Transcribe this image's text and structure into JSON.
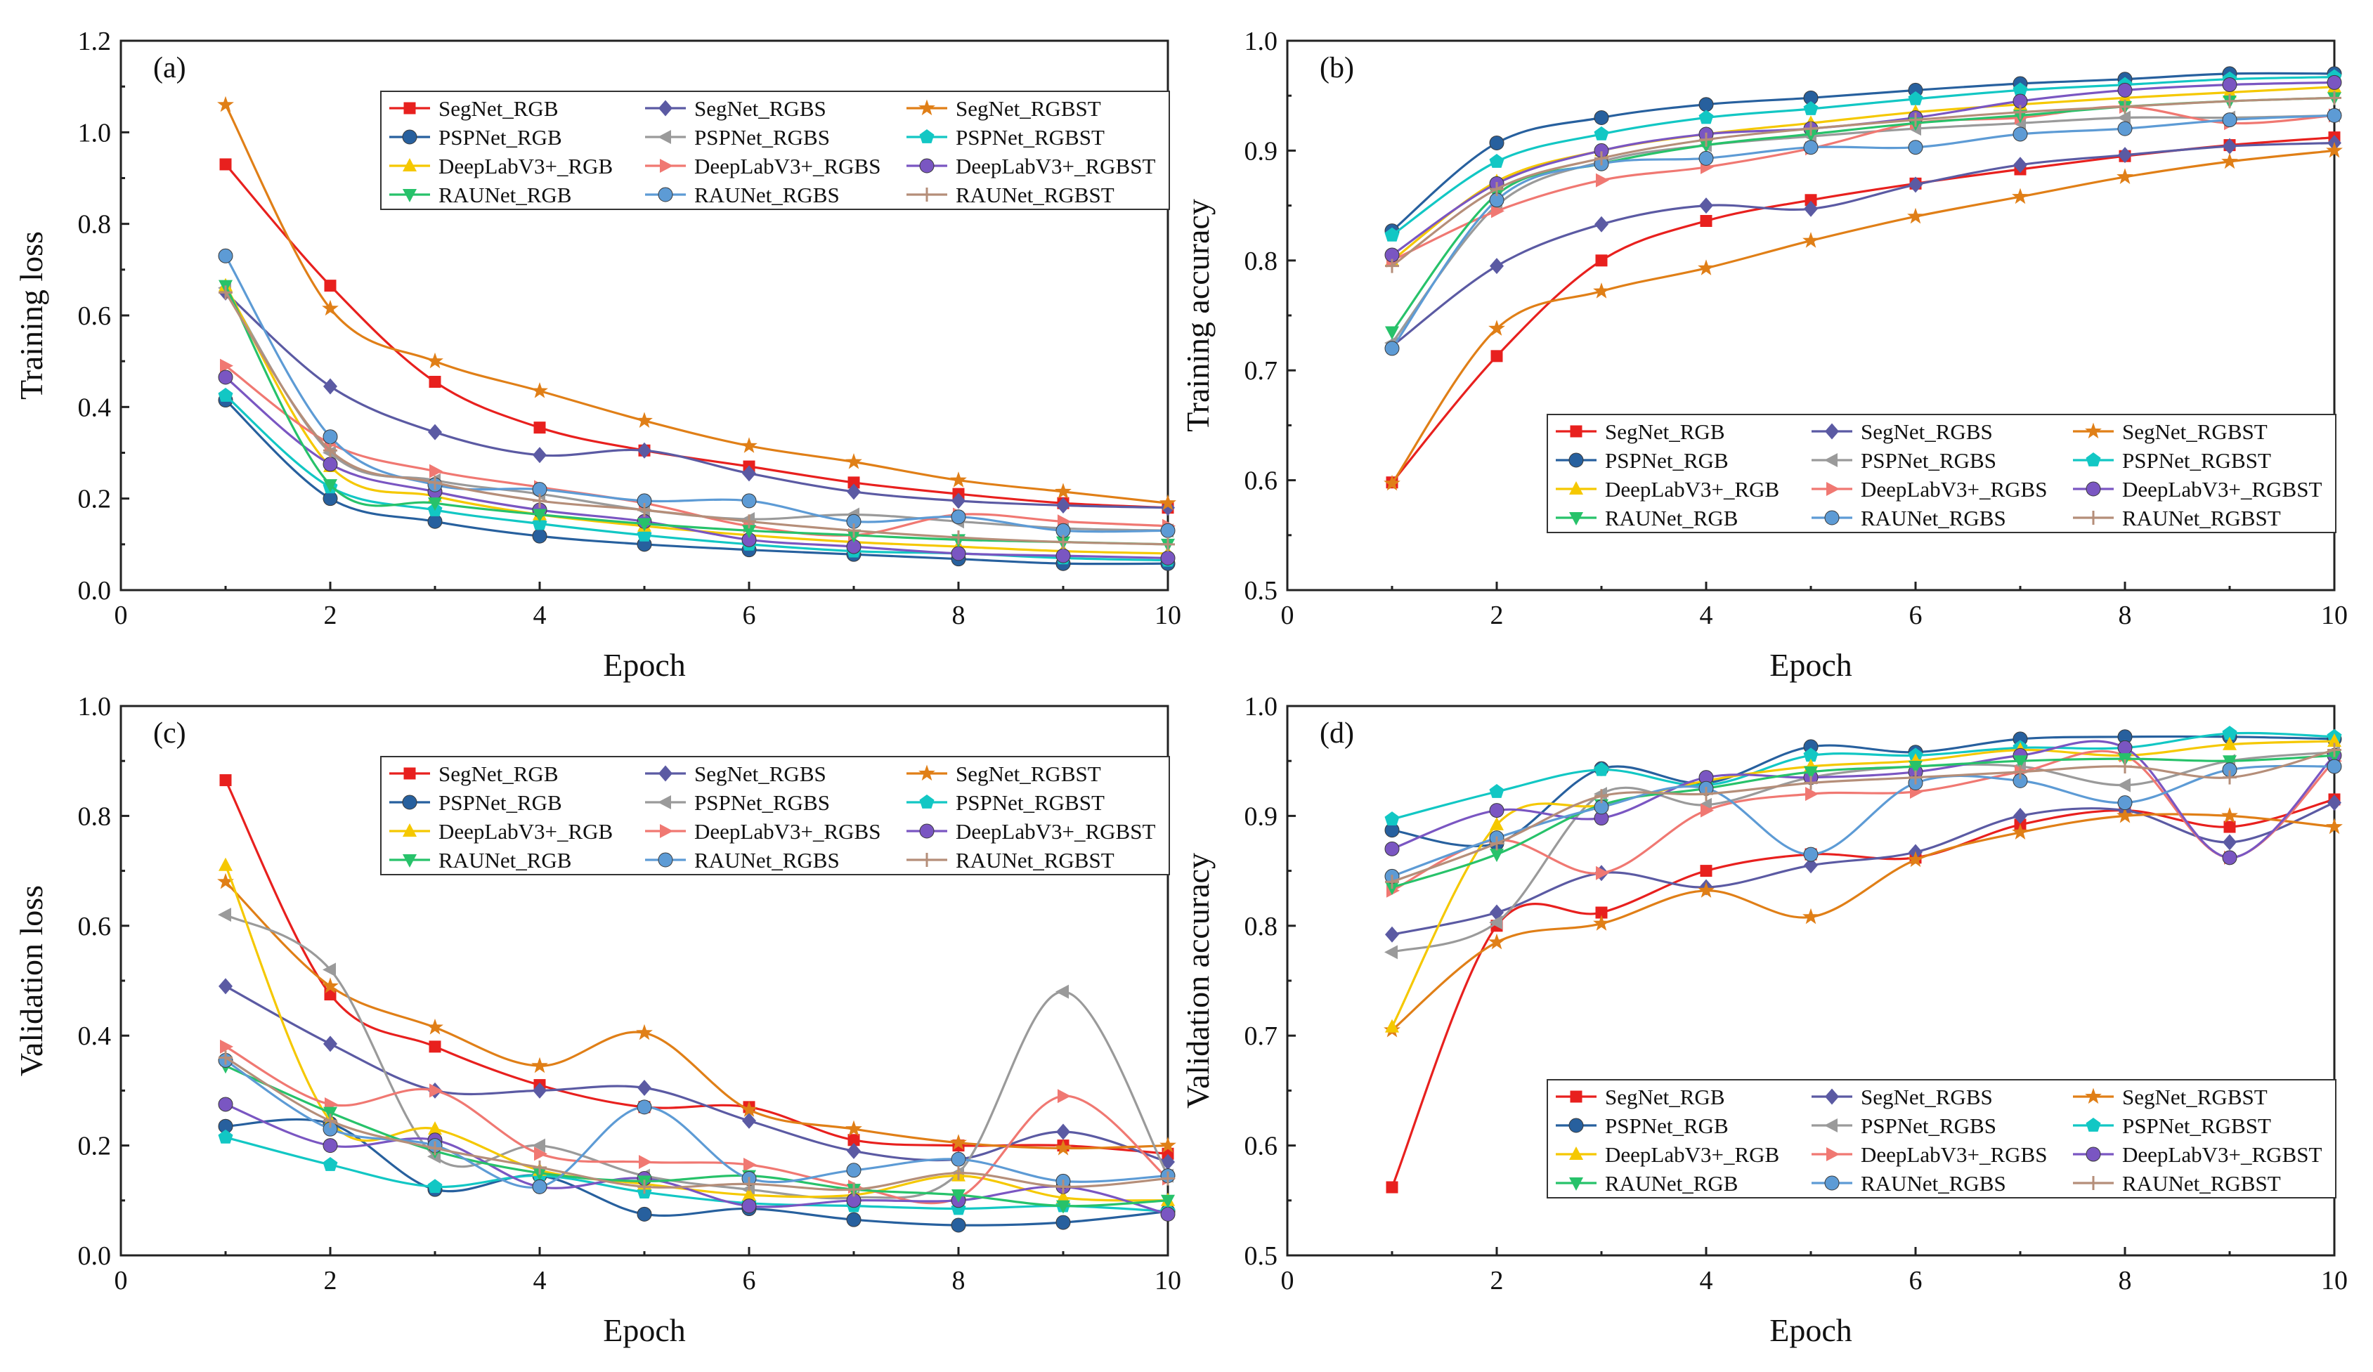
{
  "style": {
    "series_colors": {
      "SegNet_RGB": "#E8201E",
      "SegNet_RGBS": "#5B5AA3",
      "SegNet_RGBST": "#E07F17",
      "PSPNet_RGB": "#27609E",
      "PSPNet_RGBS": "#9A9A9A",
      "PSPNet_RGBST": "#12C7C4",
      "DeepLabV3+_RGB": "#F5C800",
      "DeepLabV3+_RGBS": "#F07872",
      "DeepLabV3+_RGBST": "#7A56C2",
      "RAUNet_RGB": "#27C26A",
      "RAUNet_RGBS": "#5D9BD5",
      "RAUNet_RGBST": "#B58E79"
    },
    "series_markers": {
      "SegNet_RGB": "square",
      "SegNet_RGBS": "diamond",
      "SegNet_RGBST": "star",
      "PSPNet_RGB": "circle",
      "PSPNet_RGBS": "triangle-left",
      "PSPNet_RGBST": "pentagon",
      "DeepLabV3+_RGB": "triangle-up",
      "DeepLabV3+_RGBS": "triangle-right",
      "DeepLabV3+_RGBST": "circle",
      "RAUNet_RGB": "triangle-down",
      "RAUNet_RGBS": "circle",
      "RAUNet_RGBST": "plus"
    }
  },
  "chart_data": [
    {
      "id": "a",
      "panel_label": "(a)",
      "type": "line",
      "xlabel": "Epoch",
      "ylabel": "Training loss",
      "xlim": [
        0,
        10
      ],
      "ylim": [
        0,
        1.2
      ],
      "xticks": [
        "0",
        "2",
        "4",
        "6",
        "8",
        "10"
      ],
      "yticks": [
        "0.0",
        "0.2",
        "0.4",
        "0.6",
        "0.8",
        "1.0",
        "1.2"
      ],
      "legend_placement": "top-right",
      "x": [
        1,
        2,
        3,
        4,
        5,
        6,
        7,
        8,
        9,
        10
      ],
      "series": [
        {
          "name": "SegNet_RGB",
          "values": [
            0.93,
            0.665,
            0.455,
            0.355,
            0.305,
            0.27,
            0.235,
            0.21,
            0.19,
            0.18
          ]
        },
        {
          "name": "SegNet_RGBS",
          "values": [
            0.65,
            0.445,
            0.345,
            0.295,
            0.305,
            0.255,
            0.215,
            0.195,
            0.185,
            0.18
          ]
        },
        {
          "name": "SegNet_RGBST",
          "values": [
            1.06,
            0.615,
            0.5,
            0.435,
            0.37,
            0.315,
            0.28,
            0.24,
            0.215,
            0.19
          ]
        },
        {
          "name": "PSPNet_RGB",
          "values": [
            0.415,
            0.2,
            0.15,
            0.118,
            0.1,
            0.088,
            0.078,
            0.068,
            0.058,
            0.058
          ]
        },
        {
          "name": "PSPNet_RGBS",
          "values": [
            0.66,
            0.3,
            0.24,
            0.21,
            0.175,
            0.155,
            0.165,
            0.15,
            0.135,
            0.13
          ]
        },
        {
          "name": "PSPNet_RGBST",
          "values": [
            0.425,
            0.225,
            0.175,
            0.145,
            0.12,
            0.1,
            0.085,
            0.08,
            0.07,
            0.065
          ]
        },
        {
          "name": "DeepLabV3+_RGB",
          "values": [
            0.665,
            0.27,
            0.205,
            0.165,
            0.14,
            0.12,
            0.105,
            0.095,
            0.085,
            0.08
          ]
        },
        {
          "name": "DeepLabV3+_RGBS",
          "values": [
            0.49,
            0.32,
            0.26,
            0.225,
            0.19,
            0.14,
            0.12,
            0.165,
            0.15,
            0.14
          ]
        },
        {
          "name": "DeepLabV3+_RGBST",
          "values": [
            0.465,
            0.275,
            0.215,
            0.175,
            0.15,
            0.11,
            0.095,
            0.08,
            0.075,
            0.07
          ]
        },
        {
          "name": "RAUNet_RGB",
          "values": [
            0.665,
            0.23,
            0.19,
            0.165,
            0.145,
            0.13,
            0.12,
            0.11,
            0.105,
            0.1
          ]
        },
        {
          "name": "RAUNet_RGBS",
          "values": [
            0.73,
            0.335,
            0.23,
            0.22,
            0.195,
            0.195,
            0.15,
            0.16,
            0.13,
            0.13
          ]
        },
        {
          "name": "RAUNet_RGBST",
          "values": [
            0.65,
            0.305,
            0.235,
            0.195,
            0.175,
            0.15,
            0.13,
            0.115,
            0.105,
            0.1
          ]
        }
      ]
    },
    {
      "id": "b",
      "panel_label": "(b)",
      "type": "line",
      "xlabel": "Epoch",
      "ylabel": "Training accuracy",
      "xlim": [
        0,
        10
      ],
      "ylim": [
        0.5,
        1.0
      ],
      "xticks": [
        "0",
        "2",
        "4",
        "6",
        "8",
        "10"
      ],
      "yticks": [
        "0.5",
        "0.6",
        "0.7",
        "0.8",
        "0.9",
        "1.0"
      ],
      "legend_placement": "bottom-right",
      "x": [
        1,
        2,
        3,
        4,
        5,
        6,
        7,
        8,
        9,
        10
      ],
      "series": [
        {
          "name": "SegNet_RGB",
          "values": [
            0.598,
            0.713,
            0.8,
            0.836,
            0.855,
            0.87,
            0.883,
            0.895,
            0.905,
            0.912
          ]
        },
        {
          "name": "SegNet_RGBS",
          "values": [
            0.722,
            0.795,
            0.833,
            0.85,
            0.847,
            0.869,
            0.887,
            0.896,
            0.904,
            0.907
          ]
        },
        {
          "name": "SegNet_RGBST",
          "values": [
            0.597,
            0.738,
            0.772,
            0.793,
            0.818,
            0.84,
            0.858,
            0.876,
            0.89,
            0.9
          ]
        },
        {
          "name": "PSPNet_RGB",
          "values": [
            0.827,
            0.907,
            0.93,
            0.942,
            0.948,
            0.955,
            0.961,
            0.965,
            0.97,
            0.97
          ]
        },
        {
          "name": "PSPNet_RGBS",
          "values": [
            0.725,
            0.85,
            0.89,
            0.905,
            0.913,
            0.92,
            0.925,
            0.93,
            0.93,
            0.932
          ]
        },
        {
          "name": "PSPNet_RGBST",
          "values": [
            0.823,
            0.89,
            0.915,
            0.93,
            0.938,
            0.947,
            0.955,
            0.96,
            0.965,
            0.967
          ]
        },
        {
          "name": "DeepLabV3+_RGB",
          "values": [
            0.8,
            0.872,
            0.9,
            0.915,
            0.925,
            0.935,
            0.942,
            0.948,
            0.953,
            0.958
          ]
        },
        {
          "name": "DeepLabV3+_RGBS",
          "values": [
            0.8,
            0.845,
            0.873,
            0.885,
            0.902,
            0.925,
            0.93,
            0.94,
            0.925,
            0.932
          ]
        },
        {
          "name": "DeepLabV3+_RGBST",
          "values": [
            0.805,
            0.87,
            0.9,
            0.915,
            0.92,
            0.93,
            0.945,
            0.955,
            0.96,
            0.962
          ]
        },
        {
          "name": "RAUNet_RGB",
          "values": [
            0.735,
            0.86,
            0.888,
            0.905,
            0.915,
            0.925,
            0.932,
            0.94,
            0.945,
            0.948
          ]
        },
        {
          "name": "RAUNet_RGBS",
          "values": [
            0.72,
            0.855,
            0.888,
            0.893,
            0.903,
            0.903,
            0.915,
            0.92,
            0.928,
            0.932
          ]
        },
        {
          "name": "RAUNet_RGBST",
          "values": [
            0.795,
            0.865,
            0.893,
            0.91,
            0.92,
            0.928,
            0.935,
            0.94,
            0.945,
            0.948
          ]
        }
      ]
    },
    {
      "id": "c",
      "panel_label": "(c)",
      "type": "line",
      "xlabel": "Epoch",
      "ylabel": "Validation loss",
      "xlim": [
        0,
        10
      ],
      "ylim": [
        0,
        1.0
      ],
      "xticks": [
        "0",
        "2",
        "4",
        "6",
        "8",
        "10"
      ],
      "yticks": [
        "0.0",
        "0.2",
        "0.4",
        "0.6",
        "0.8",
        "1.0"
      ],
      "legend_placement": "top-right",
      "x": [
        1,
        2,
        3,
        4,
        5,
        6,
        7,
        8,
        9,
        10
      ],
      "series": [
        {
          "name": "SegNet_RGB",
          "values": [
            0.865,
            0.475,
            0.38,
            0.31,
            0.27,
            0.27,
            0.21,
            0.2,
            0.2,
            0.185
          ]
        },
        {
          "name": "SegNet_RGBS",
          "values": [
            0.49,
            0.385,
            0.3,
            0.3,
            0.305,
            0.245,
            0.19,
            0.175,
            0.225,
            0.17
          ]
        },
        {
          "name": "SegNet_RGBST",
          "values": [
            0.68,
            0.49,
            0.415,
            0.345,
            0.405,
            0.265,
            0.23,
            0.205,
            0.195,
            0.2
          ]
        },
        {
          "name": "PSPNet_RGB",
          "values": [
            0.235,
            0.24,
            0.12,
            0.145,
            0.075,
            0.085,
            0.065,
            0.055,
            0.06,
            0.08
          ]
        },
        {
          "name": "PSPNet_RGBS",
          "values": [
            0.62,
            0.52,
            0.18,
            0.2,
            0.145,
            0.12,
            0.105,
            0.15,
            0.48,
            0.145
          ]
        },
        {
          "name": "PSPNet_RGBST",
          "values": [
            0.215,
            0.165,
            0.125,
            0.145,
            0.115,
            0.095,
            0.09,
            0.085,
            0.09,
            0.08
          ]
        },
        {
          "name": "DeepLabV3+_RGB",
          "values": [
            0.71,
            0.245,
            0.23,
            0.155,
            0.13,
            0.11,
            0.11,
            0.145,
            0.105,
            0.1
          ]
        },
        {
          "name": "DeepLabV3+_RGBS",
          "values": [
            0.38,
            0.275,
            0.3,
            0.185,
            0.17,
            0.165,
            0.125,
            0.105,
            0.29,
            0.14
          ]
        },
        {
          "name": "DeepLabV3+_RGBST",
          "values": [
            0.275,
            0.2,
            0.21,
            0.125,
            0.14,
            0.09,
            0.1,
            0.1,
            0.125,
            0.075
          ]
        },
        {
          "name": "RAUNet_RGB",
          "values": [
            0.345,
            0.26,
            0.19,
            0.15,
            0.135,
            0.145,
            0.12,
            0.11,
            0.09,
            0.1
          ]
        },
        {
          "name": "RAUNet_RGBS",
          "values": [
            0.355,
            0.23,
            0.2,
            0.125,
            0.27,
            0.14,
            0.155,
            0.175,
            0.135,
            0.145
          ]
        },
        {
          "name": "RAUNet_RGBST",
          "values": [
            0.36,
            0.245,
            0.195,
            0.16,
            0.125,
            0.13,
            0.12,
            0.15,
            0.125,
            0.14
          ]
        }
      ]
    },
    {
      "id": "d",
      "panel_label": "(d)",
      "type": "line",
      "xlabel": "Epoch",
      "ylabel": "Validation accuracy",
      "xlim": [
        0,
        10
      ],
      "ylim": [
        0.5,
        1.0
      ],
      "xticks": [
        "0",
        "2",
        "4",
        "6",
        "8",
        "10"
      ],
      "yticks": [
        "0.5",
        "0.6",
        "0.7",
        "0.8",
        "0.9",
        "1.0"
      ],
      "legend_placement": "bottom-right",
      "x": [
        1,
        2,
        3,
        4,
        5,
        6,
        7,
        8,
        9,
        10
      ],
      "series": [
        {
          "name": "SegNet_RGB",
          "values": [
            0.562,
            0.8,
            0.812,
            0.85,
            0.865,
            0.862,
            0.892,
            0.905,
            0.89,
            0.915
          ]
        },
        {
          "name": "SegNet_RGBS",
          "values": [
            0.792,
            0.812,
            0.848,
            0.835,
            0.855,
            0.867,
            0.9,
            0.905,
            0.876,
            0.912
          ]
        },
        {
          "name": "SegNet_RGBST",
          "values": [
            0.705,
            0.785,
            0.802,
            0.832,
            0.808,
            0.86,
            0.885,
            0.9,
            0.9,
            0.89
          ]
        },
        {
          "name": "PSPNet_RGB",
          "values": [
            0.887,
            0.875,
            0.943,
            0.93,
            0.963,
            0.958,
            0.97,
            0.972,
            0.972,
            0.97
          ]
        },
        {
          "name": "PSPNet_RGBS",
          "values": [
            0.776,
            0.803,
            0.92,
            0.91,
            0.935,
            0.945,
            0.945,
            0.928,
            0.95,
            0.958
          ]
        },
        {
          "name": "PSPNet_RGBST",
          "values": [
            0.897,
            0.922,
            0.942,
            0.928,
            0.955,
            0.955,
            0.962,
            0.962,
            0.975,
            0.972
          ]
        },
        {
          "name": "DeepLabV3+_RGB",
          "values": [
            0.708,
            0.892,
            0.91,
            0.932,
            0.945,
            0.95,
            0.96,
            0.955,
            0.965,
            0.968
          ]
        },
        {
          "name": "DeepLabV3+_RGBS",
          "values": [
            0.832,
            0.878,
            0.848,
            0.905,
            0.92,
            0.922,
            0.94,
            0.955,
            0.862,
            0.95
          ]
        },
        {
          "name": "DeepLabV3+_RGBST",
          "values": [
            0.87,
            0.905,
            0.898,
            0.935,
            0.935,
            0.94,
            0.955,
            0.962,
            0.862,
            0.955
          ]
        },
        {
          "name": "RAUNet_RGB",
          "values": [
            0.835,
            0.865,
            0.91,
            0.925,
            0.94,
            0.945,
            0.95,
            0.952,
            0.95,
            0.955
          ]
        },
        {
          "name": "RAUNet_RGBS",
          "values": [
            0.845,
            0.88,
            0.908,
            0.925,
            0.865,
            0.93,
            0.932,
            0.912,
            0.942,
            0.945
          ]
        },
        {
          "name": "RAUNet_RGBST",
          "values": [
            0.84,
            0.875,
            0.918,
            0.92,
            0.93,
            0.935,
            0.94,
            0.945,
            0.935,
            0.96
          ]
        }
      ]
    }
  ]
}
